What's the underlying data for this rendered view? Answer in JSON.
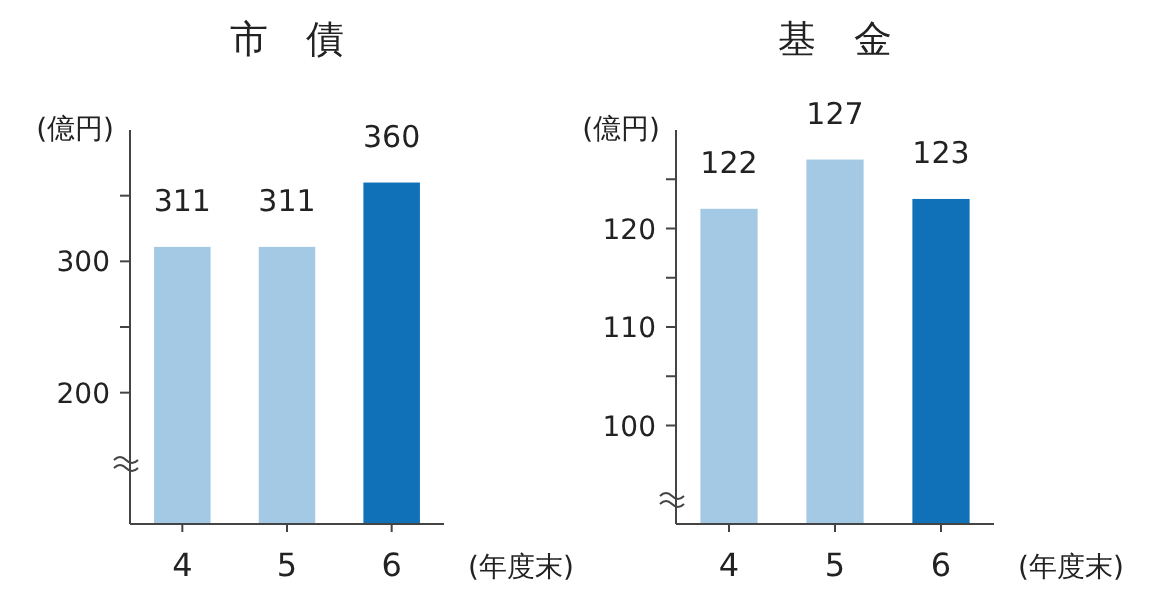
{
  "chart_data": [
    {
      "type": "bar",
      "title": "市　債",
      "ylabel": "(億円)",
      "xlabel": "(年度末)",
      "categories": [
        "4",
        "5",
        "6"
      ],
      "values": [
        311,
        311,
        360
      ],
      "colors": [
        "#a3c9e5",
        "#a3c9e5",
        "#1071b8"
      ],
      "ylim": [
        100,
        400
      ],
      "yticks": [
        200,
        {
          "value": 250,
          "label": null
        },
        300,
        {
          "value": 350,
          "label": null
        }
      ],
      "data_labels": true,
      "grid": false
    },
    {
      "type": "bar",
      "title": "基　金",
      "ylabel": "(億円)",
      "xlabel": "(年度末)",
      "categories": [
        "4",
        "5",
        "6"
      ],
      "values": [
        122,
        127,
        123
      ],
      "colors": [
        "#a3c9e5",
        "#a3c9e5",
        "#1071b8"
      ],
      "ylim": [
        90,
        130
      ],
      "yticks": [
        100,
        {
          "value": 105,
          "label": null
        },
        110,
        {
          "value": 115,
          "label": null
        },
        120,
        {
          "value": 125,
          "label": null
        }
      ],
      "data_labels": true,
      "grid": false
    }
  ]
}
